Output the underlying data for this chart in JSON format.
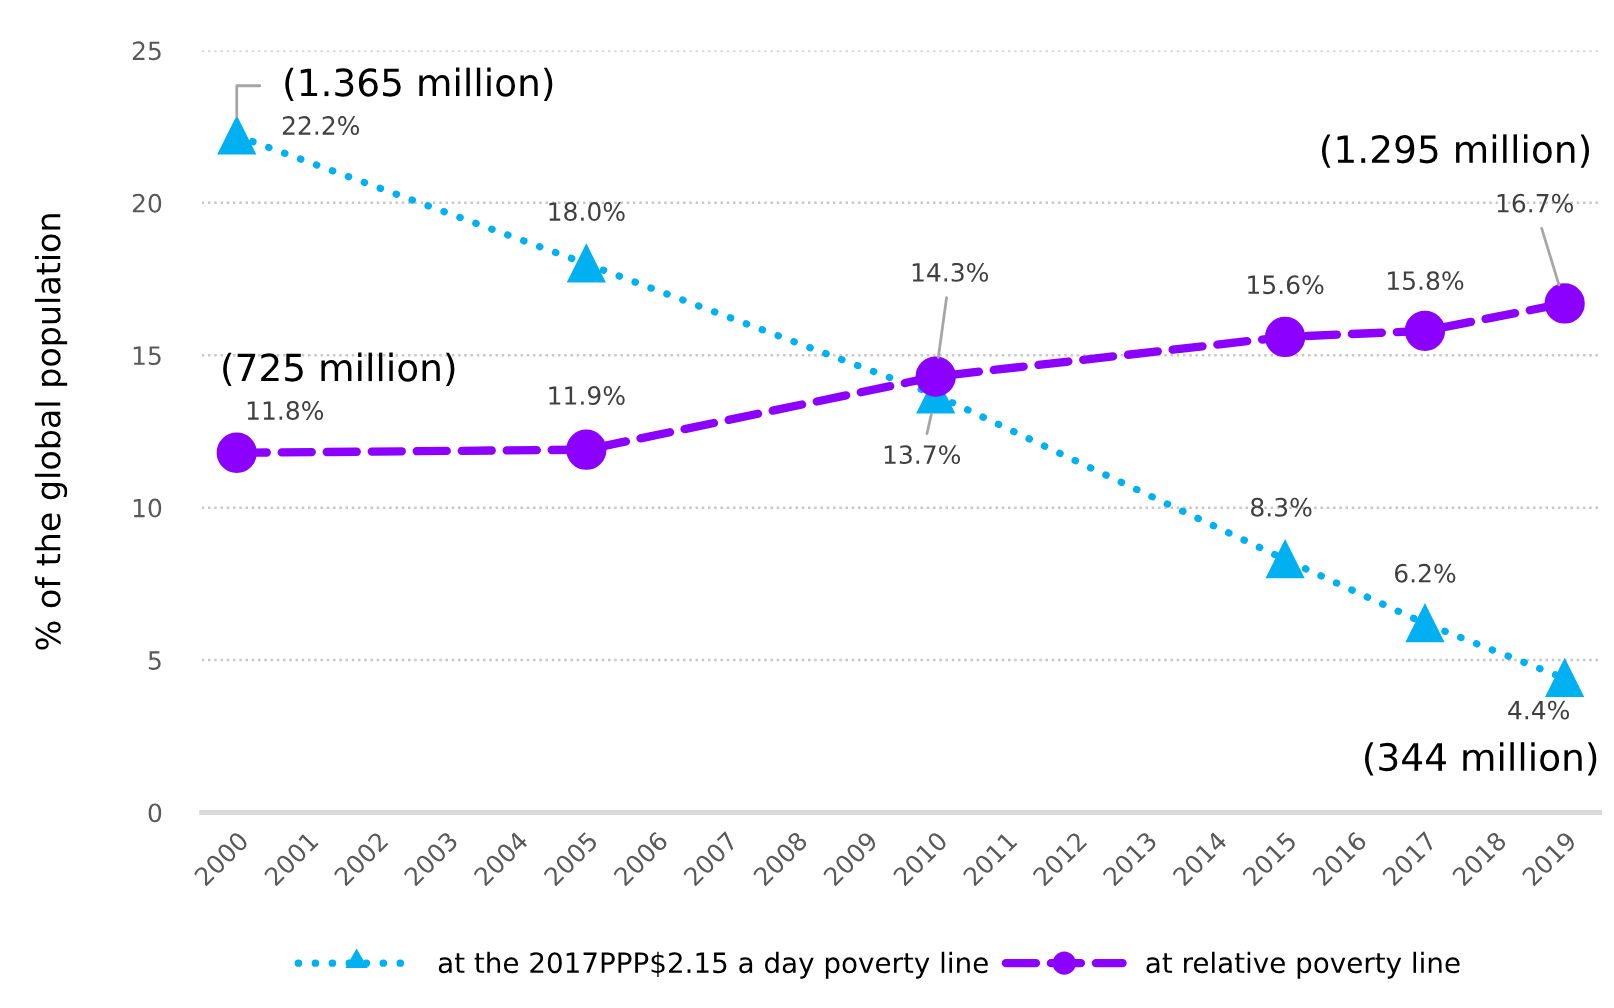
{
  "chart_data": {
    "type": "line",
    "ylabel": "% of the global population",
    "xlim": [
      "1999-07-02",
      "2019-07-02"
    ],
    "xticks": [
      "2000",
      "2001",
      "2002",
      "2003",
      "2004",
      "2005",
      "2006",
      "2007",
      "2008",
      "2009",
      "2010",
      "2011",
      "2012",
      "2013",
      "2014",
      "2015",
      "2016",
      "2017",
      "2018",
      "2019"
    ],
    "ylim": [
      0,
      25
    ],
    "yticks": [
      0,
      5,
      10,
      15,
      20,
      25
    ],
    "grid": "y",
    "legend": "bottom",
    "series": [
      {
        "name": "at the 2017PPP$2.15 a day poverty line",
        "color": "#00b0f0",
        "marker": "triangle",
        "line_style": "dotted",
        "x": [
          "2000",
          "2005",
          "2010",
          "2015",
          "2017",
          "2019"
        ],
        "values": [
          22.2,
          18.0,
          13.7,
          8.3,
          6.2,
          4.4
        ],
        "value_labels": [
          "22.2%",
          "18.0%",
          "13.7%",
          "8.3%",
          "6.2%",
          "4.4%"
        ]
      },
      {
        "name": "at relative poverty line",
        "color": "#8b00ff",
        "marker": "circle",
        "line_style": "dashed",
        "x": [
          "2000",
          "2005",
          "2010",
          "2015",
          "2017",
          "2019"
        ],
        "values": [
          11.8,
          11.9,
          14.3,
          15.6,
          15.8,
          16.7
        ],
        "value_labels": [
          "11.8%",
          "11.9%",
          "14.3%",
          "15.6%",
          "15.8%",
          "16.7%"
        ]
      }
    ],
    "annotations": [
      {
        "text": "(1.365 million)",
        "x": "2000",
        "y": 22.2
      },
      {
        "text": "(725 million)",
        "x": "2000",
        "y": 11.8
      },
      "(1.295 million)",
      {
        "text": "(344 million)",
        "x": "2019",
        "y": 4.4
      }
    ]
  }
}
